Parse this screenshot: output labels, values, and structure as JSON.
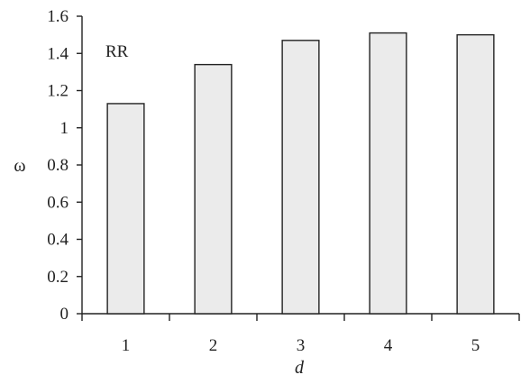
{
  "chart_data": {
    "type": "bar",
    "categories": [
      "1",
      "2",
      "3",
      "4",
      "5"
    ],
    "values": [
      1.13,
      1.34,
      1.47,
      1.51,
      1.5
    ],
    "ylim": [
      0,
      1.6
    ],
    "yticks": [
      "0",
      "0.2",
      "0.4",
      "0.6",
      "0.8",
      "1",
      "1.2",
      "1.4",
      "1.6"
    ],
    "xlabel": "d",
    "ylabel": "ω",
    "annotation": "RR",
    "grid": false,
    "bar_fill": "#ebebeb",
    "bar_stroke": "#222222",
    "axis_color": "#222222"
  }
}
